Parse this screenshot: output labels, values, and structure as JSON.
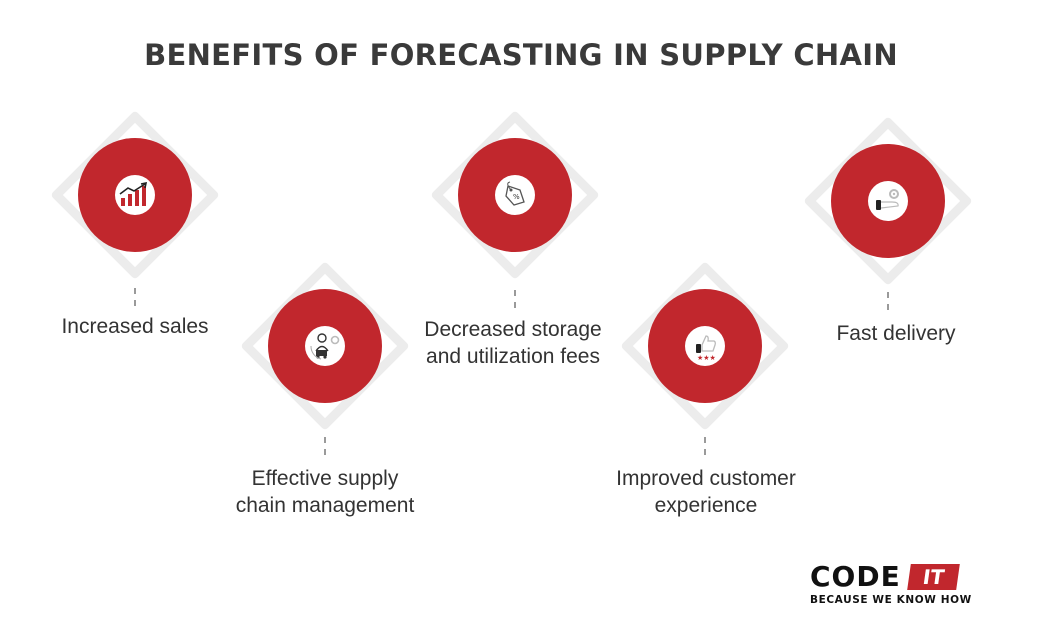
{
  "title": "BENEFITS OF FORECASTING IN SUPPLY CHAIN",
  "benefits": [
    {
      "label": "Increased sales",
      "icon": "bar-chart-growth-icon"
    },
    {
      "label": "Effective supply chain management",
      "icon": "delivery-person-icon"
    },
    {
      "label": "Decreased storage and utilization fees",
      "icon": "price-tag-icon"
    },
    {
      "label": "Improved customer experience",
      "icon": "thumbs-up-rating-icon"
    },
    {
      "label": "Fast delivery",
      "icon": "hand-gear-icon"
    }
  ],
  "logo": {
    "code": "CODE",
    "it": "IT",
    "tagline": "BECAUSE WE KNOW HOW"
  },
  "colors": {
    "accent": "#c1272d",
    "diamond": "#ececec",
    "text": "#333333"
  }
}
